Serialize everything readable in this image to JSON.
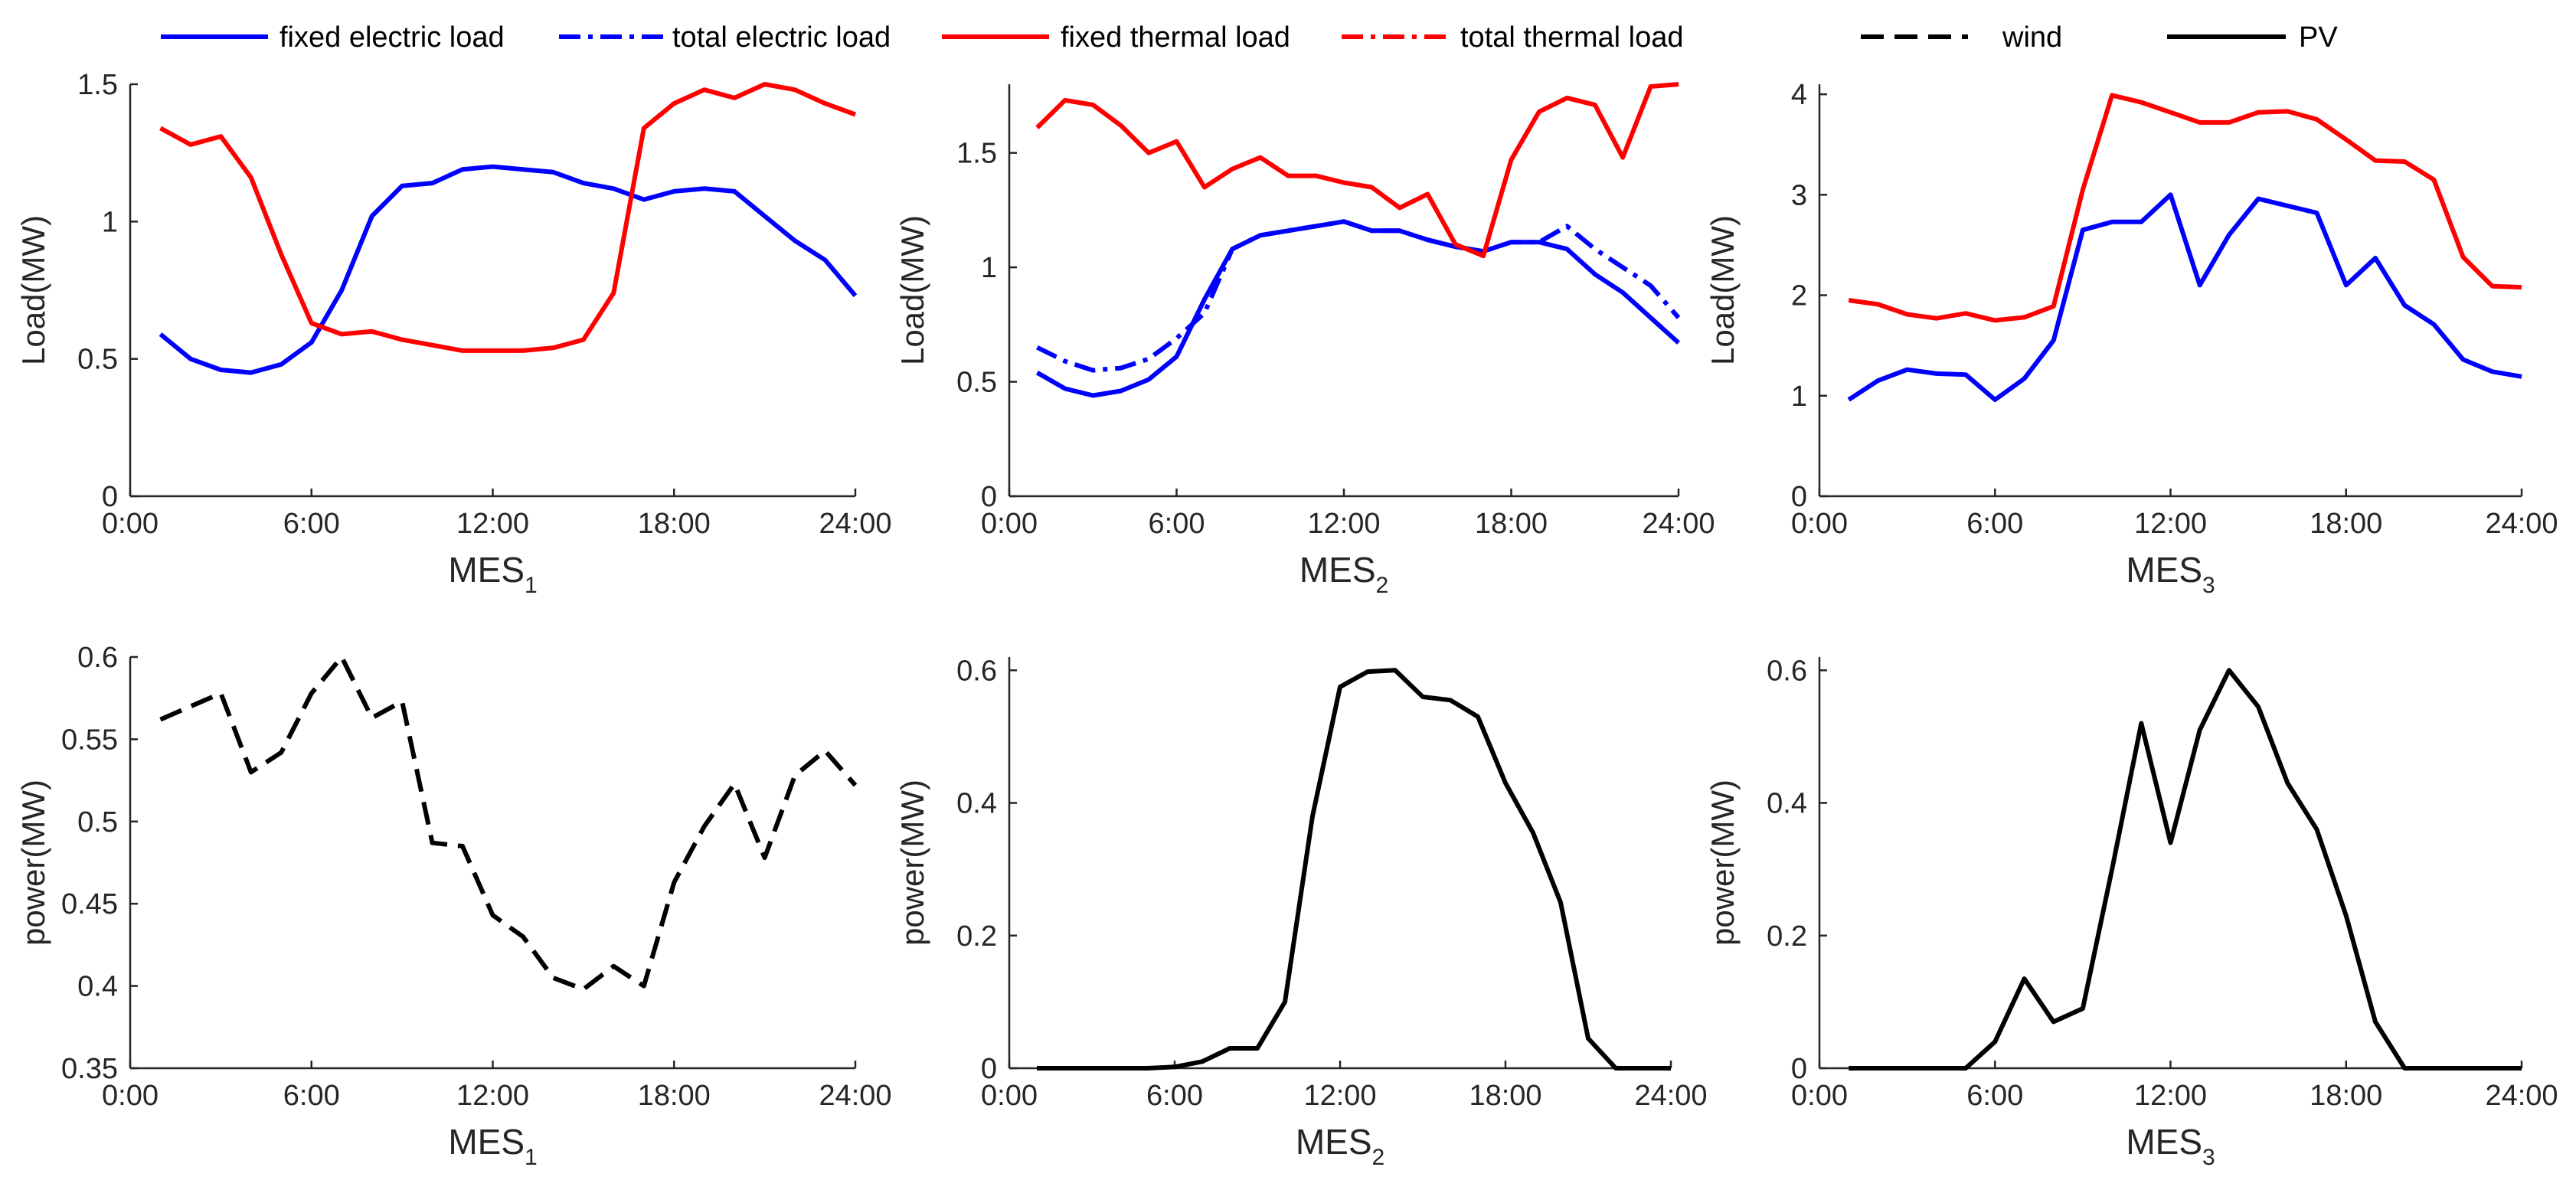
{
  "legend": [
    {
      "label": "fixed electric load",
      "color": "#0000ff",
      "style": "solid"
    },
    {
      "label": "total electric load",
      "color": "#0000ff",
      "style": "dashdot"
    },
    {
      "label": "fixed thermal load",
      "color": "#ff0000",
      "style": "solid"
    },
    {
      "label": "total thermal load",
      "color": "#ff0000",
      "style": "dashdot"
    },
    {
      "label": "wind",
      "color": "#000000",
      "style": "dashed"
    },
    {
      "label": "PV",
      "color": "#000000",
      "style": "solid"
    }
  ],
  "chart_data": [
    {
      "type": "line",
      "xlabel": "MES",
      "xlabel_sub": "1",
      "ylabel": "Load(MW)",
      "xlim": [
        0,
        24
      ],
      "ylim": [
        0,
        1.5
      ],
      "xticks": [
        0,
        6,
        12,
        18,
        24
      ],
      "xtick_labels": [
        "0:00",
        "6:00",
        "12:00",
        "18:00",
        "24:00"
      ],
      "yticks": [
        0,
        0.5,
        1,
        1.5
      ],
      "ytick_labels": [
        "0",
        "0.5",
        "1",
        "1.5"
      ],
      "x": [
        1,
        2,
        3,
        4,
        5,
        6,
        7,
        8,
        9,
        10,
        11,
        12,
        13,
        14,
        15,
        16,
        17,
        18,
        19,
        20,
        21,
        22,
        23,
        24
      ],
      "series": [
        {
          "name": "fixed electric load",
          "color": "#0000ff",
          "style": "solid",
          "values": [
            0.59,
            0.5,
            0.46,
            0.45,
            0.48,
            0.56,
            0.75,
            1.02,
            1.13,
            1.14,
            1.19,
            1.2,
            1.19,
            1.18,
            1.14,
            1.12,
            1.08,
            1.11,
            1.12,
            1.11,
            1.02,
            0.93,
            0.86,
            0.73
          ]
        },
        {
          "name": "fixed thermal load",
          "color": "#ff0000",
          "style": "solid",
          "values": [
            1.34,
            1.28,
            1.31,
            1.16,
            0.88,
            0.63,
            0.59,
            0.6,
            0.57,
            0.55,
            0.53,
            0.53,
            0.53,
            0.54,
            0.57,
            0.74,
            1.34,
            1.43,
            1.48,
            1.45,
            1.5,
            1.48,
            1.43,
            1.39
          ]
        }
      ]
    },
    {
      "type": "line",
      "xlabel": "MES",
      "xlabel_sub": "2",
      "ylabel": "Load(MW)",
      "xlim": [
        0,
        24
      ],
      "ylim": [
        0,
        1.8
      ],
      "xticks": [
        0,
        6,
        12,
        18,
        24
      ],
      "xtick_labels": [
        "0:00",
        "6:00",
        "12:00",
        "18:00",
        "24:00"
      ],
      "yticks": [
        0,
        0.5,
        1,
        1.5
      ],
      "ytick_labels": [
        "0",
        "0.5",
        "1",
        "1.5"
      ],
      "x": [
        1,
        2,
        3,
        4,
        5,
        6,
        7,
        8,
        9,
        10,
        11,
        12,
        13,
        14,
        15,
        16,
        17,
        18,
        19,
        20,
        21,
        22,
        23,
        24
      ],
      "series": [
        {
          "name": "fixed electric load",
          "color": "#0000ff",
          "style": "solid",
          "values": [
            0.54,
            0.47,
            0.44,
            0.46,
            0.51,
            0.61,
            0.86,
            1.08,
            1.14,
            1.16,
            1.18,
            1.2,
            1.16,
            1.16,
            1.12,
            1.09,
            1.07,
            1.11,
            1.11,
            1.08,
            0.97,
            0.89,
            0.78,
            0.67
          ]
        },
        {
          "name": "total electric load",
          "color": "#0000ff",
          "style": "dashdot",
          "values": [
            0.65,
            0.59,
            0.55,
            0.56,
            0.6,
            0.69,
            0.8,
            1.08,
            1.14,
            1.16,
            1.18,
            1.2,
            1.16,
            1.16,
            1.12,
            1.09,
            1.07,
            1.11,
            1.11,
            1.18,
            1.08,
            1.0,
            0.92,
            0.78
          ]
        },
        {
          "name": "fixed thermal load",
          "color": "#ff0000",
          "style": "solid",
          "values": [
            1.61,
            1.73,
            1.71,
            1.62,
            1.5,
            1.55,
            1.35,
            1.43,
            1.48,
            1.4,
            1.4,
            1.37,
            1.35,
            1.26,
            1.32,
            1.1,
            1.05,
            1.47,
            1.68,
            1.74,
            1.71,
            1.48,
            1.79,
            1.8
          ]
        }
      ]
    },
    {
      "type": "line",
      "xlabel": "MES",
      "xlabel_sub": "3",
      "ylabel": "Load(MW)",
      "xlim": [
        0,
        24
      ],
      "ylim": [
        0,
        4.1
      ],
      "xticks": [
        0,
        6,
        12,
        18,
        24
      ],
      "xtick_labels": [
        "0:00",
        "6:00",
        "12:00",
        "18:00",
        "24:00"
      ],
      "yticks": [
        0,
        1,
        2,
        3,
        4
      ],
      "ytick_labels": [
        "0",
        "1",
        "2",
        "3",
        "4"
      ],
      "x": [
        1,
        2,
        3,
        4,
        5,
        6,
        7,
        8,
        9,
        10,
        11,
        12,
        13,
        14,
        15,
        16,
        17,
        18,
        19,
        20,
        21,
        22,
        23,
        24
      ],
      "series": [
        {
          "name": "fixed electric load",
          "color": "#0000ff",
          "style": "solid",
          "values": [
            0.96,
            1.15,
            1.26,
            1.22,
            1.21,
            0.96,
            1.17,
            1.55,
            2.65,
            2.73,
            2.73,
            3.0,
            2.1,
            2.6,
            2.96,
            2.89,
            2.82,
            2.1,
            2.37,
            1.9,
            1.71,
            1.36,
            1.24,
            1.19
          ]
        },
        {
          "name": "fixed thermal load",
          "color": "#ff0000",
          "style": "solid",
          "values": [
            1.95,
            1.91,
            1.81,
            1.77,
            1.82,
            1.75,
            1.78,
            1.89,
            3.05,
            3.99,
            3.92,
            3.82,
            3.72,
            3.72,
            3.82,
            3.83,
            3.75,
            3.55,
            3.34,
            3.33,
            3.15,
            2.38,
            2.09,
            2.08
          ]
        }
      ]
    },
    {
      "type": "line",
      "xlabel": "MES",
      "xlabel_sub": "1",
      "ylabel": "power(MW)",
      "xlim": [
        0,
        24
      ],
      "ylim": [
        0.35,
        0.6
      ],
      "xticks": [
        0,
        6,
        12,
        18,
        24
      ],
      "xtick_labels": [
        "0:00",
        "6:00",
        "12:00",
        "18:00",
        "24:00"
      ],
      "yticks": [
        0.35,
        0.4,
        0.45,
        0.5,
        0.55,
        0.6
      ],
      "ytick_labels": [
        "0.35",
        "0.4",
        "0.45",
        "0.5",
        "0.55",
        "0.6"
      ],
      "x": [
        1,
        2,
        3,
        4,
        5,
        6,
        7,
        8,
        9,
        10,
        11,
        12,
        13,
        14,
        15,
        16,
        17,
        18,
        19,
        20,
        21,
        22,
        23,
        24
      ],
      "series": [
        {
          "name": "wind",
          "color": "#000000",
          "style": "dashed",
          "values": [
            0.562,
            0.57,
            0.578,
            0.53,
            0.542,
            0.578,
            0.6,
            0.563,
            0.573,
            0.487,
            0.485,
            0.443,
            0.43,
            0.405,
            0.398,
            0.412,
            0.4,
            0.463,
            0.497,
            0.523,
            0.478,
            0.528,
            0.543,
            0.522
          ]
        }
      ]
    },
    {
      "type": "line",
      "xlabel": "MES",
      "xlabel_sub": "2",
      "ylabel": "power(MW)",
      "xlim": [
        0,
        24
      ],
      "ylim": [
        0,
        0.62
      ],
      "xticks": [
        0,
        6,
        12,
        18,
        24
      ],
      "xtick_labels": [
        "0:00",
        "6:00",
        "12:00",
        "18:00",
        "24:00"
      ],
      "yticks": [
        0,
        0.2,
        0.4,
        0.6
      ],
      "ytick_labels": [
        "0",
        "0.2",
        "0.4",
        "0.6"
      ],
      "x": [
        1,
        2,
        3,
        4,
        5,
        6,
        7,
        8,
        9,
        10,
        11,
        12,
        13,
        14,
        15,
        16,
        17,
        18,
        19,
        20,
        21,
        22,
        23,
        24
      ],
      "series": [
        {
          "name": "PV",
          "color": "#000000",
          "style": "solid",
          "values": [
            0,
            0,
            0,
            0,
            0,
            0.002,
            0.01,
            0.03,
            0.03,
            0.1,
            0.38,
            0.575,
            0.598,
            0.6,
            0.56,
            0.555,
            0.53,
            0.43,
            0.355,
            0.25,
            0.045,
            0,
            0,
            0
          ]
        }
      ]
    },
    {
      "type": "line",
      "xlabel": "MES",
      "xlabel_sub": "3",
      "ylabel": "power(MW)",
      "xlim": [
        0,
        24
      ],
      "ylim": [
        0,
        0.62
      ],
      "xticks": [
        0,
        6,
        12,
        18,
        24
      ],
      "xtick_labels": [
        "0:00",
        "6:00",
        "12:00",
        "18:00",
        "24:00"
      ],
      "yticks": [
        0,
        0.2,
        0.4,
        0.6
      ],
      "ytick_labels": [
        "0",
        "0.2",
        "0.4",
        "0.6"
      ],
      "x": [
        1,
        2,
        3,
        4,
        5,
        6,
        7,
        8,
        9,
        10,
        11,
        12,
        13,
        14,
        15,
        16,
        17,
        18,
        19,
        20,
        21,
        22,
        23,
        24
      ],
      "series": [
        {
          "name": "PV",
          "color": "#000000",
          "style": "solid",
          "values": [
            0,
            0,
            0,
            0,
            0,
            0.04,
            0.135,
            0.07,
            0.09,
            0.3,
            0.52,
            0.34,
            0.51,
            0.6,
            0.545,
            0.43,
            0.36,
            0.23,
            0.07,
            0,
            0,
            0,
            0,
            0
          ]
        }
      ]
    }
  ]
}
